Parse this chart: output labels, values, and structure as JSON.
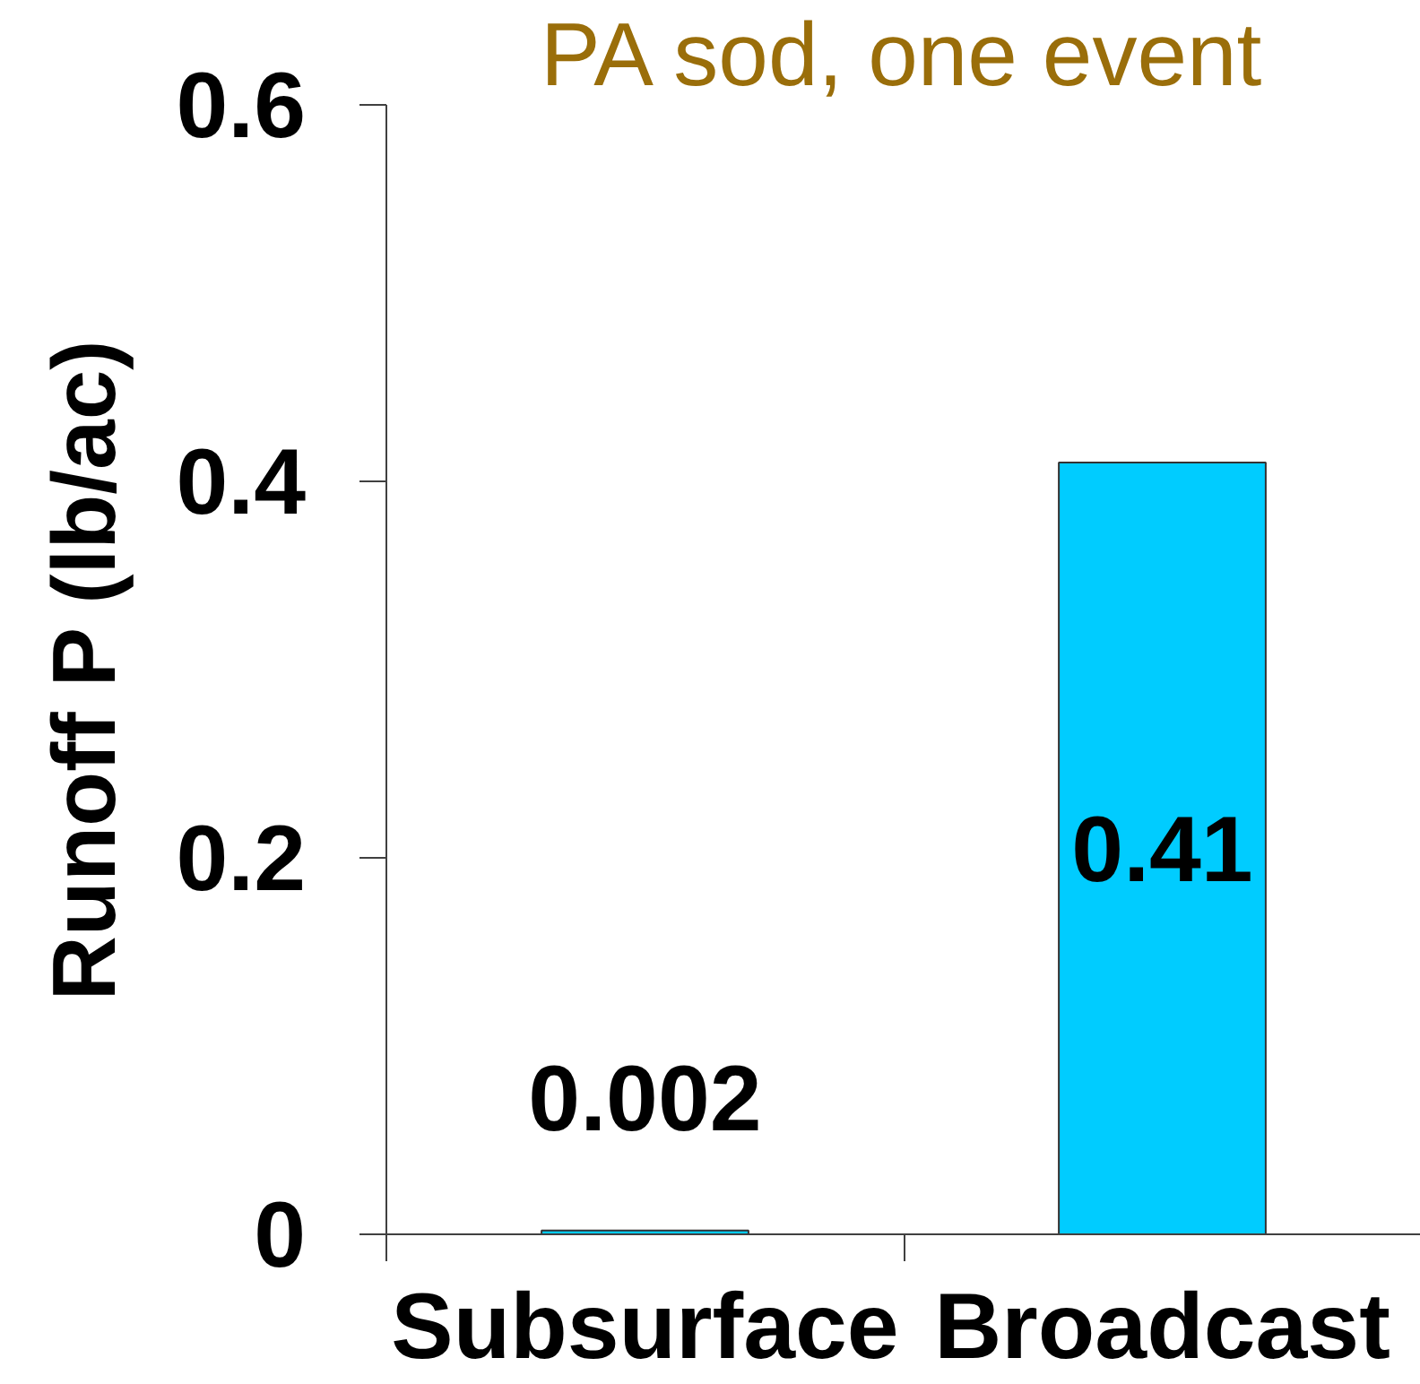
{
  "chart_data": {
    "type": "bar",
    "title": "PA sod, one event",
    "ylabel": "Runoff P (lb/ac)",
    "categories": [
      "Subsurface",
      "Broadcast"
    ],
    "values": [
      0.002,
      0.41
    ],
    "color": "#00ccff",
    "ylim": [
      0,
      0.6
    ],
    "yticks": [
      0,
      0.2,
      0.4,
      0.6
    ],
    "data_labels": true
  }
}
